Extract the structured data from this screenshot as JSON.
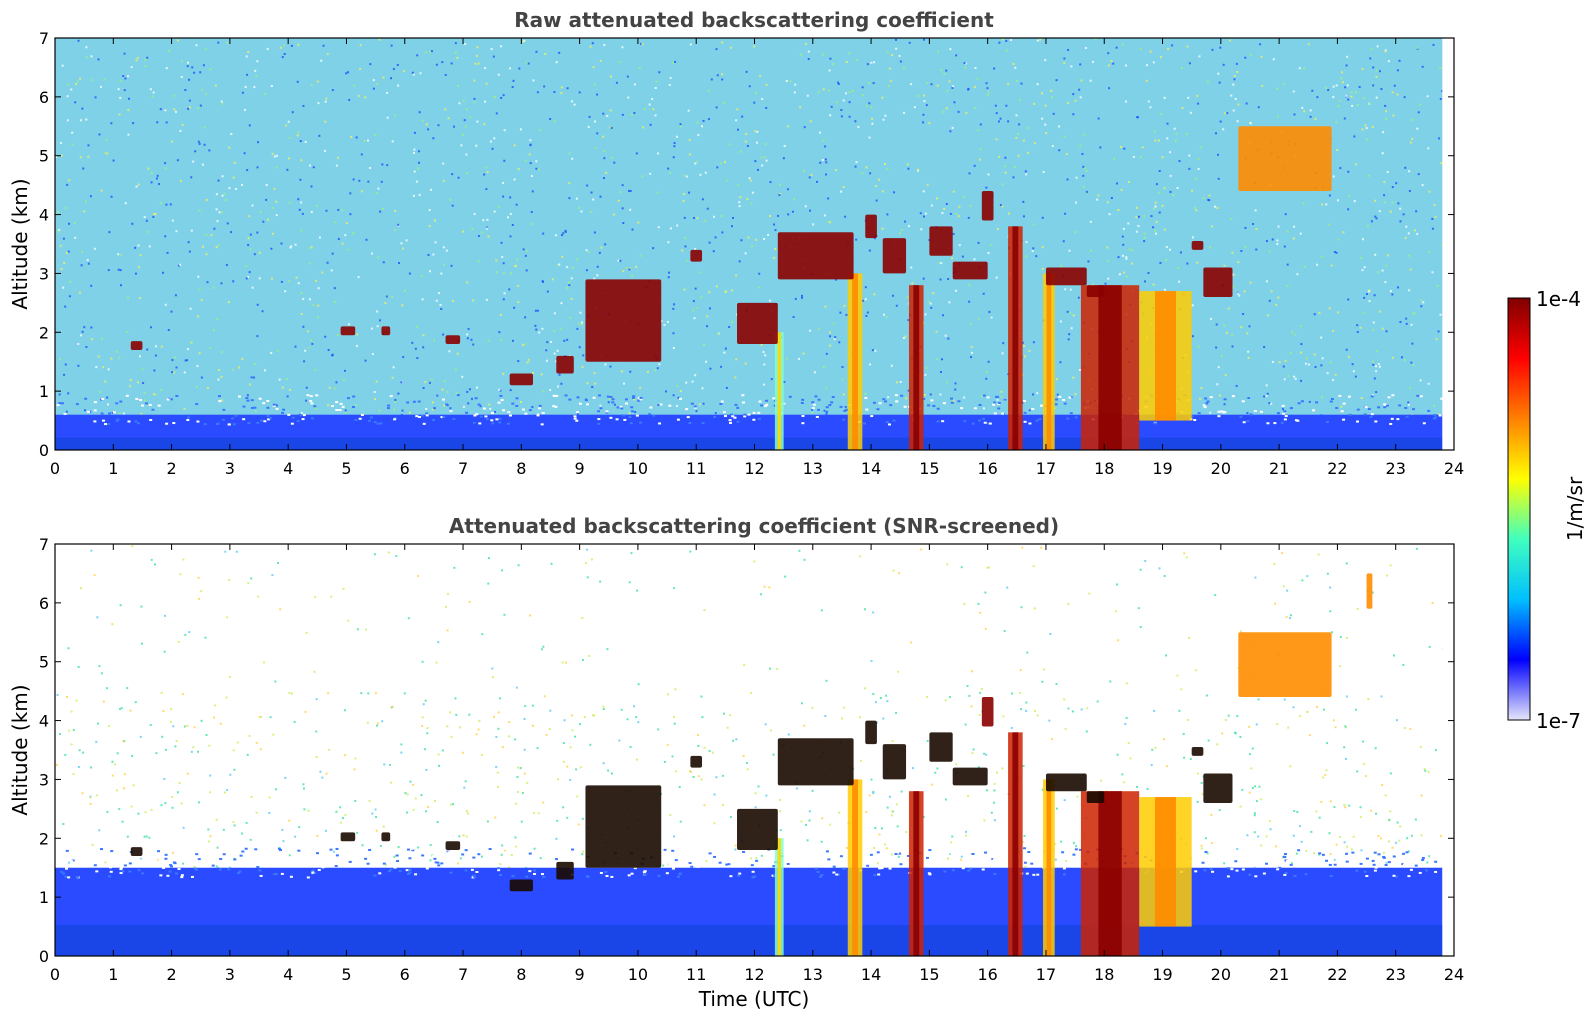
{
  "figure": {
    "xlabel": "Time (UTC)",
    "colorbar": {
      "label": "1/m/sr",
      "max_label": "1e-4",
      "min_label": "1e-7",
      "scale": "log",
      "range": [
        1e-07,
        0.0001
      ],
      "colormap": "jet",
      "colors": [
        "#e6e6fa",
        "#0000ff",
        "#00bfff",
        "#40ffbf",
        "#ffff00",
        "#ff8000",
        "#ff0000",
        "#800000"
      ]
    }
  },
  "chart_data": [
    {
      "type": "heatmap",
      "title": "Raw attenuated backscattering coefficient",
      "xlabel": "",
      "ylabel": "Altitude (km)",
      "xlim": [
        0,
        24
      ],
      "ylim": [
        0,
        7
      ],
      "xticks": [
        "0",
        "1",
        "2",
        "3",
        "4",
        "5",
        "6",
        "7",
        "8",
        "9",
        "10",
        "11",
        "12",
        "13",
        "14",
        "15",
        "16",
        "17",
        "18",
        "19",
        "20",
        "21",
        "22",
        "23",
        "24"
      ],
      "yticks": [
        "0",
        "1",
        "2",
        "3",
        "4",
        "5",
        "6",
        "7"
      ],
      "screened": false,
      "surface_layer_top_km": 0.6,
      "clouds": [
        {
          "time": [
            1.3,
            1.5
          ],
          "altitude": [
            1.7,
            1.85
          ],
          "level": "high"
        },
        {
          "time": [
            4.9,
            5.15
          ],
          "altitude": [
            1.95,
            2.1
          ],
          "level": "high"
        },
        {
          "time": [
            5.6,
            5.75
          ],
          "altitude": [
            1.95,
            2.1
          ],
          "level": "high"
        },
        {
          "time": [
            6.7,
            6.95
          ],
          "altitude": [
            1.8,
            1.95
          ],
          "level": "high"
        },
        {
          "time": [
            7.8,
            8.2
          ],
          "altitude": [
            1.1,
            1.3
          ],
          "level": "high"
        },
        {
          "time": [
            8.6,
            8.9
          ],
          "altitude": [
            1.3,
            1.6
          ],
          "level": "high"
        },
        {
          "time": [
            9.1,
            10.4
          ],
          "altitude": [
            1.5,
            2.9
          ],
          "level": "high"
        },
        {
          "time": [
            10.9,
            11.1
          ],
          "altitude": [
            3.2,
            3.4
          ],
          "level": "high"
        },
        {
          "time": [
            11.7,
            12.4
          ],
          "altitude": [
            1.8,
            2.5
          ],
          "level": "high"
        },
        {
          "time": [
            12.4,
            13.7
          ],
          "altitude": [
            2.9,
            3.7
          ],
          "level": "high"
        },
        {
          "time": [
            13.9,
            14.1
          ],
          "altitude": [
            3.6,
            4.0
          ],
          "level": "high"
        },
        {
          "time": [
            14.2,
            14.6
          ],
          "altitude": [
            3.0,
            3.6
          ],
          "level": "high"
        },
        {
          "time": [
            15.0,
            15.4
          ],
          "altitude": [
            3.3,
            3.8
          ],
          "level": "high"
        },
        {
          "time": [
            15.4,
            16.0
          ],
          "altitude": [
            2.9,
            3.2
          ],
          "level": "high"
        },
        {
          "time": [
            15.9,
            16.1
          ],
          "altitude": [
            3.9,
            4.4
          ],
          "level": "high"
        },
        {
          "time": [
            17.0,
            17.7
          ],
          "altitude": [
            2.8,
            3.1
          ],
          "level": "high"
        },
        {
          "time": [
            17.7,
            18.0
          ],
          "altitude": [
            2.6,
            2.8
          ],
          "level": "high"
        },
        {
          "time": [
            19.5,
            19.7
          ],
          "altitude": [
            3.4,
            3.55
          ],
          "level": "high"
        },
        {
          "time": [
            19.7,
            20.2
          ],
          "altitude": [
            2.6,
            3.1
          ],
          "level": "high"
        },
        {
          "time": [
            20.3,
            21.9
          ],
          "altitude": [
            4.4,
            5.5
          ],
          "level": "medium"
        }
      ],
      "precipitation_columns": [
        {
          "time": [
            12.35,
            12.5
          ],
          "altitude": [
            0,
            2.0
          ],
          "level": "low"
        },
        {
          "time": [
            13.6,
            13.85
          ],
          "altitude": [
            0,
            3.0
          ],
          "level": "medium"
        },
        {
          "time": [
            14.65,
            14.9
          ],
          "altitude": [
            0,
            2.8
          ],
          "level": "high"
        },
        {
          "time": [
            16.35,
            16.6
          ],
          "altitude": [
            0,
            3.8
          ],
          "level": "high"
        },
        {
          "time": [
            16.95,
            17.15
          ],
          "altitude": [
            0,
            3.0
          ],
          "level": "medium"
        },
        {
          "time": [
            17.6,
            18.6
          ],
          "altitude": [
            0,
            2.8
          ],
          "level": "high"
        },
        {
          "time": [
            18.6,
            19.5
          ],
          "altitude": [
            0.5,
            2.7
          ],
          "level": "medium"
        }
      ]
    },
    {
      "type": "heatmap",
      "title": "Attenuated backscattering coefficient (SNR-screened)",
      "xlabel": "Time (UTC)",
      "ylabel": "Altitude (km)",
      "xlim": [
        0,
        24
      ],
      "ylim": [
        0,
        7
      ],
      "xticks": [
        "0",
        "1",
        "2",
        "3",
        "4",
        "5",
        "6",
        "7",
        "8",
        "9",
        "10",
        "11",
        "12",
        "13",
        "14",
        "15",
        "16",
        "17",
        "18",
        "19",
        "20",
        "21",
        "22",
        "23",
        "24"
      ],
      "yticks": [
        "0",
        "1",
        "2",
        "3",
        "4",
        "5",
        "6",
        "7"
      ],
      "screened": true,
      "surface_layer_top_km": 1.5,
      "clouds": [
        {
          "time": [
            1.3,
            1.5
          ],
          "altitude": [
            1.7,
            1.85
          ],
          "level": "black"
        },
        {
          "time": [
            4.9,
            5.15
          ],
          "altitude": [
            1.95,
            2.1
          ],
          "level": "black"
        },
        {
          "time": [
            5.6,
            5.75
          ],
          "altitude": [
            1.95,
            2.1
          ],
          "level": "black"
        },
        {
          "time": [
            6.7,
            6.95
          ],
          "altitude": [
            1.8,
            1.95
          ],
          "level": "black"
        },
        {
          "time": [
            7.8,
            8.2
          ],
          "altitude": [
            1.1,
            1.3
          ],
          "level": "black"
        },
        {
          "time": [
            8.6,
            8.9
          ],
          "altitude": [
            1.3,
            1.6
          ],
          "level": "black"
        },
        {
          "time": [
            9.1,
            10.4
          ],
          "altitude": [
            1.5,
            2.9
          ],
          "level": "black"
        },
        {
          "time": [
            10.9,
            11.1
          ],
          "altitude": [
            3.2,
            3.4
          ],
          "level": "black"
        },
        {
          "time": [
            11.7,
            12.4
          ],
          "altitude": [
            1.8,
            2.5
          ],
          "level": "black"
        },
        {
          "time": [
            12.4,
            13.7
          ],
          "altitude": [
            2.9,
            3.7
          ],
          "level": "black"
        },
        {
          "time": [
            13.9,
            14.1
          ],
          "altitude": [
            3.6,
            4.0
          ],
          "level": "black"
        },
        {
          "time": [
            14.2,
            14.6
          ],
          "altitude": [
            3.0,
            3.6
          ],
          "level": "black"
        },
        {
          "time": [
            15.0,
            15.4
          ],
          "altitude": [
            3.3,
            3.8
          ],
          "level": "black"
        },
        {
          "time": [
            15.4,
            16.0
          ],
          "altitude": [
            2.9,
            3.2
          ],
          "level": "black"
        },
        {
          "time": [
            15.9,
            16.1
          ],
          "altitude": [
            3.9,
            4.4
          ],
          "level": "high"
        },
        {
          "time": [
            17.0,
            17.7
          ],
          "altitude": [
            2.8,
            3.1
          ],
          "level": "black"
        },
        {
          "time": [
            17.7,
            18.0
          ],
          "altitude": [
            2.6,
            2.8
          ],
          "level": "black"
        },
        {
          "time": [
            19.5,
            19.7
          ],
          "altitude": [
            3.4,
            3.55
          ],
          "level": "black"
        },
        {
          "time": [
            19.7,
            20.2
          ],
          "altitude": [
            2.6,
            3.1
          ],
          "level": "black"
        },
        {
          "time": [
            20.3,
            21.9
          ],
          "altitude": [
            4.4,
            5.5
          ],
          "level": "medium"
        },
        {
          "time": [
            22.5,
            22.6
          ],
          "altitude": [
            5.9,
            6.5
          ],
          "level": "medium"
        }
      ],
      "precipitation_columns": [
        {
          "time": [
            12.35,
            12.5
          ],
          "altitude": [
            0,
            2.0
          ],
          "level": "low"
        },
        {
          "time": [
            13.6,
            13.85
          ],
          "altitude": [
            0,
            3.0
          ],
          "level": "medium"
        },
        {
          "time": [
            14.65,
            14.9
          ],
          "altitude": [
            0,
            2.8
          ],
          "level": "high"
        },
        {
          "time": [
            16.35,
            16.6
          ],
          "altitude": [
            0,
            3.8
          ],
          "level": "high"
        },
        {
          "time": [
            16.95,
            17.15
          ],
          "altitude": [
            0,
            3.0
          ],
          "level": "medium"
        },
        {
          "time": [
            17.6,
            18.6
          ],
          "altitude": [
            0,
            2.8
          ],
          "level": "high"
        },
        {
          "time": [
            18.6,
            19.5
          ],
          "altitude": [
            0.5,
            2.7
          ],
          "level": "medium"
        }
      ]
    }
  ]
}
